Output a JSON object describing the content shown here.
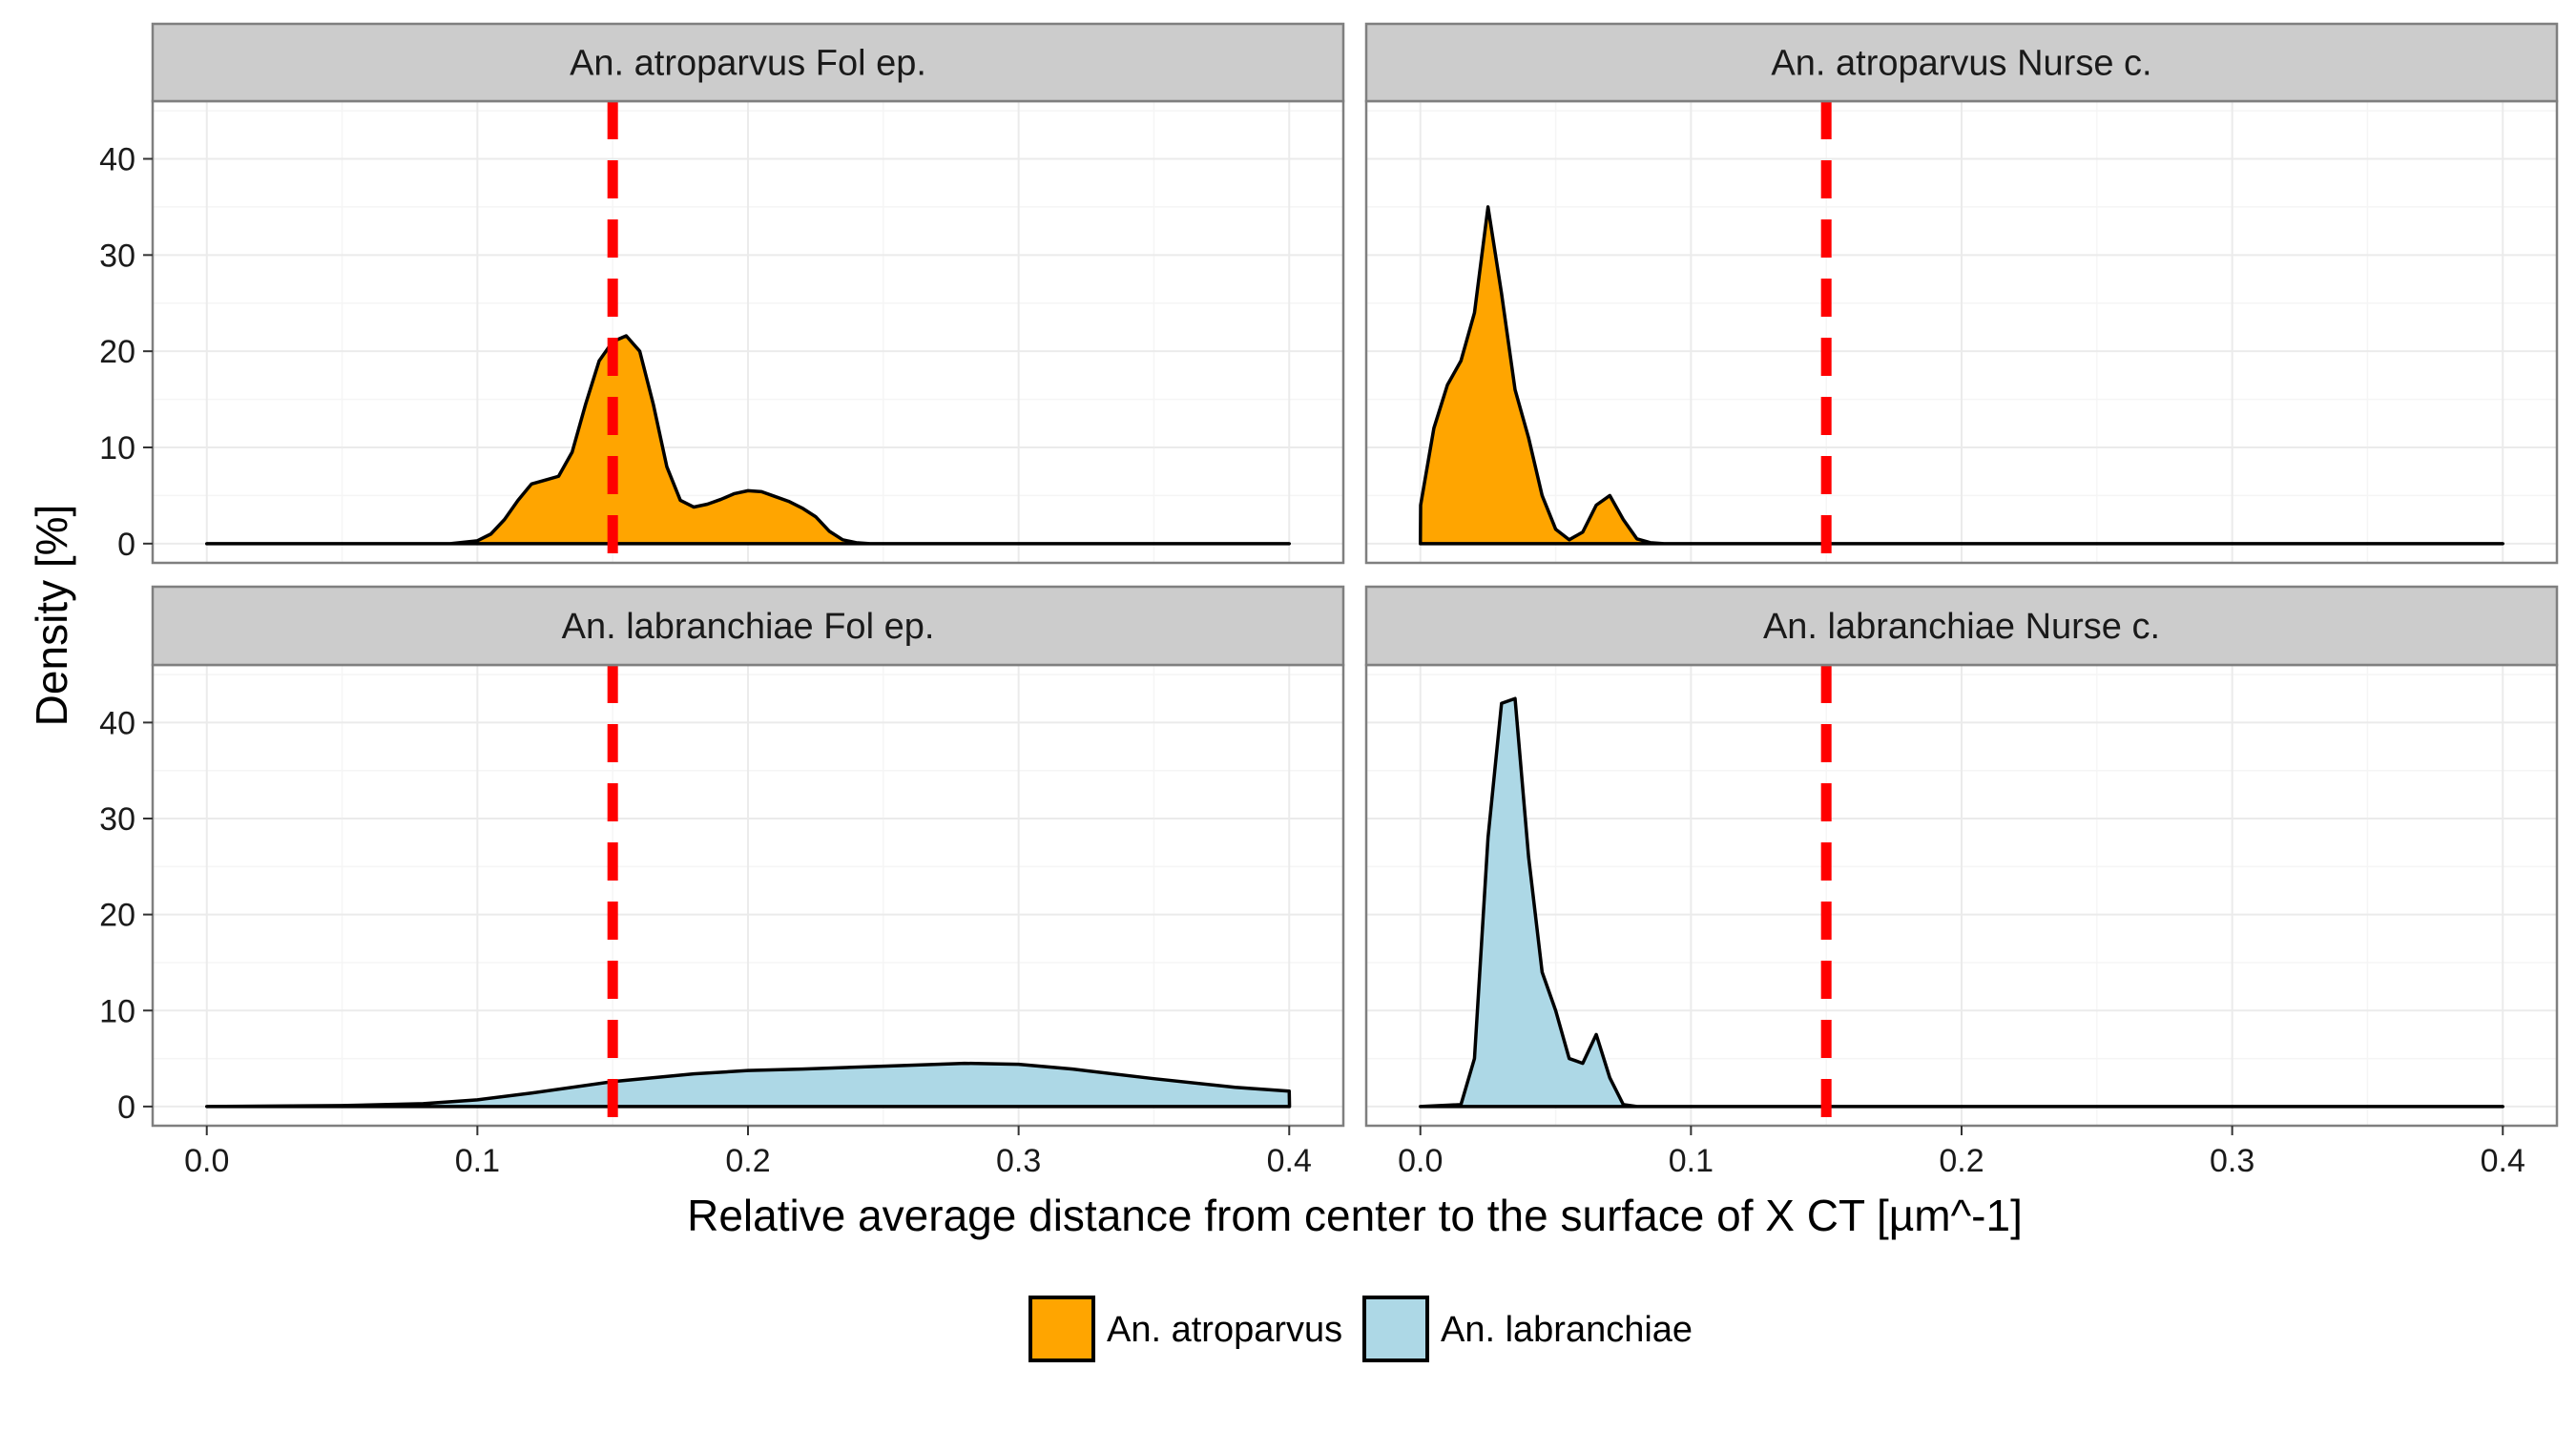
{
  "chart_data": {
    "type": "area",
    "xlabel": "Relative average distance from center to the surface of X CT [µm^-1]",
    "ylabel": "Density [%]",
    "xlim": [
      -0.02,
      0.42
    ],
    "ylim": [
      -2,
      46
    ],
    "x_ticks": [
      "0.0",
      "0.1",
      "0.2",
      "0.3",
      "0.4"
    ],
    "y_ticks": [
      "0",
      "10",
      "20",
      "30",
      "40"
    ],
    "threshold_x": 0.15,
    "grid": true,
    "legend_position": "bottom",
    "colors": {
      "An. atroparvus": "#FFA500",
      "An. labranchiae": "#ADD8E6",
      "threshold": "#FF0000",
      "strip_bg": "#CCCCCC",
      "grid": "#EBEBEB",
      "border": "#7F7F7F"
    },
    "legend": [
      {
        "label": "An. atroparvus",
        "color": "#FFA500"
      },
      {
        "label": "An. labranchiae",
        "color": "#ADD8E6"
      }
    ],
    "panels": [
      {
        "strip": "An. atroparvus Fol ep.",
        "series": "An. atroparvus",
        "x": [
          0.0,
          0.09,
          0.1,
          0.105,
          0.11,
          0.115,
          0.12,
          0.125,
          0.13,
          0.135,
          0.14,
          0.145,
          0.15,
          0.155,
          0.16,
          0.165,
          0.17,
          0.175,
          0.18,
          0.185,
          0.19,
          0.195,
          0.2,
          0.205,
          0.21,
          0.215,
          0.22,
          0.225,
          0.23,
          0.235,
          0.24,
          0.245,
          0.25,
          0.4
        ],
        "y": [
          0,
          0,
          0.3,
          1.0,
          2.5,
          4.5,
          6.2,
          6.6,
          7.0,
          9.5,
          14.5,
          19.0,
          21.0,
          21.6,
          20.0,
          14.5,
          8.0,
          4.5,
          3.8,
          4.1,
          4.6,
          5.2,
          5.5,
          5.4,
          4.9,
          4.4,
          3.7,
          2.8,
          1.3,
          0.4,
          0.1,
          0.0,
          0,
          0
        ]
      },
      {
        "strip": "An. atroparvus Nurse c.",
        "series": "An. atroparvus",
        "x": [
          0.0,
          0.0001,
          0.005,
          0.01,
          0.015,
          0.02,
          0.025,
          0.03,
          0.035,
          0.04,
          0.045,
          0.05,
          0.055,
          0.06,
          0.065,
          0.07,
          0.075,
          0.08,
          0.085,
          0.09,
          0.4
        ],
        "y": [
          0,
          4.0,
          12.0,
          16.5,
          19.0,
          24.0,
          35.0,
          26.0,
          16.0,
          11.0,
          5.0,
          1.5,
          0.4,
          1.2,
          4.0,
          5.0,
          2.5,
          0.5,
          0.1,
          0,
          0
        ]
      },
      {
        "strip": "An. labranchiae Fol ep.",
        "series": "An. labranchiae",
        "x": [
          0.0,
          0.05,
          0.08,
          0.1,
          0.12,
          0.15,
          0.18,
          0.2,
          0.22,
          0.25,
          0.28,
          0.3,
          0.32,
          0.35,
          0.38,
          0.4,
          0.4001
        ],
        "y": [
          0,
          0.1,
          0.3,
          0.7,
          1.4,
          2.6,
          3.4,
          3.75,
          3.9,
          4.2,
          4.5,
          4.4,
          3.9,
          2.9,
          2.0,
          1.6,
          0
        ]
      },
      {
        "strip": "An. labranchiae Nurse c.",
        "series": "An. labranchiae",
        "x": [
          0.0,
          0.015,
          0.02,
          0.025,
          0.03,
          0.035,
          0.04,
          0.045,
          0.05,
          0.055,
          0.06,
          0.065,
          0.07,
          0.075,
          0.08,
          0.4
        ],
        "y": [
          0,
          0.2,
          5.0,
          28.0,
          42.0,
          42.5,
          26.0,
          14.0,
          10.0,
          5.0,
          4.5,
          7.5,
          3.0,
          0.2,
          0,
          0
        ]
      }
    ]
  }
}
